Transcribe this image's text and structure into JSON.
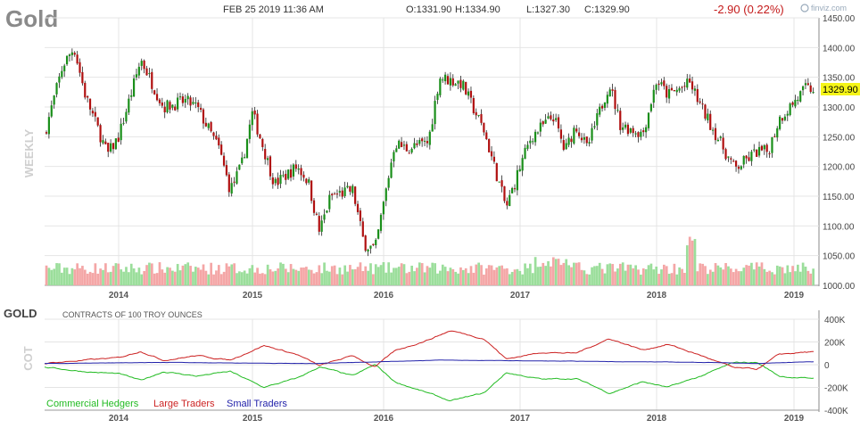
{
  "header": {
    "symbol": "Gold",
    "datetime": "FEB 25 2019 11:36 AM",
    "open": "O:1331.90",
    "high": "H:1334.90",
    "low": "L:1327.30",
    "close": "C:1329.90",
    "change": "-2.90 (0.22%)",
    "brand": "finviz.com"
  },
  "colors": {
    "up": "#1a8f1a",
    "down": "#b01010",
    "wick": "#222222",
    "vol_up": "#9bde9b",
    "vol_down": "#f4a6a6",
    "grid": "#e4e4e4",
    "commercial": "#22bb22",
    "large": "#cc2222",
    "small": "#2222aa",
    "price_tag": "#f5f518",
    "change": "#c41a1a"
  },
  "chart_data": [
    {
      "type": "candlestick",
      "timeframe_label": "WEEKLY",
      "x_tick_labels": [
        "2014",
        "2015",
        "2016",
        "2017",
        "2018",
        "2019"
      ],
      "y_tick_labels": [
        "1450.00",
        "1400.00",
        "1350.00",
        "1300.00",
        "1250.00",
        "1200.00",
        "1150.00",
        "1100.00",
        "1050.00",
        "1000.00"
      ],
      "ylim": [
        1000,
        1450
      ],
      "last_price_label": "1329.90",
      "approx_weekly_closes_keyframes": [
        [
          "2013-06",
          1230
        ],
        [
          "2013-08",
          1370
        ],
        [
          "2013-09",
          1400
        ],
        [
          "2013-10",
          1320
        ],
        [
          "2013-12",
          1220
        ],
        [
          "2014-01",
          1250
        ],
        [
          "2014-03",
          1380
        ],
        [
          "2014-05",
          1300
        ],
        [
          "2014-07",
          1310
        ],
        [
          "2014-08",
          1300
        ],
        [
          "2014-10",
          1230
        ],
        [
          "2014-11",
          1160
        ],
        [
          "2014-12",
          1200
        ],
        [
          "2015-01",
          1290
        ],
        [
          "2015-03",
          1170
        ],
        [
          "2015-05",
          1200
        ],
        [
          "2015-06",
          1175
        ],
        [
          "2015-07",
          1090
        ],
        [
          "2015-08",
          1150
        ],
        [
          "2015-10",
          1160
        ],
        [
          "2015-11",
          1070
        ],
        [
          "2015-12",
          1060
        ],
        [
          "2016-02",
          1240
        ],
        [
          "2016-03",
          1230
        ],
        [
          "2016-05",
          1240
        ],
        [
          "2016-06",
          1350
        ],
        [
          "2016-08",
          1340
        ],
        [
          "2016-10",
          1260
        ],
        [
          "2016-12",
          1130
        ],
        [
          "2017-01",
          1200
        ],
        [
          "2017-02",
          1250
        ],
        [
          "2017-04",
          1285
        ],
        [
          "2017-05",
          1225
        ],
        [
          "2017-06",
          1270
        ],
        [
          "2017-07",
          1230
        ],
        [
          "2017-09",
          1340
        ],
        [
          "2017-10",
          1270
        ],
        [
          "2017-12",
          1255
        ],
        [
          "2018-01",
          1345
        ],
        [
          "2018-02",
          1320
        ],
        [
          "2018-04",
          1340
        ],
        [
          "2018-05",
          1300
        ],
        [
          "2018-07",
          1230
        ],
        [
          "2018-08",
          1195
        ],
        [
          "2018-10",
          1225
        ],
        [
          "2018-11",
          1225
        ],
        [
          "2018-12",
          1280
        ],
        [
          "2019-02",
          1330
        ]
      ]
    },
    {
      "type": "line",
      "title": "GOLD",
      "subtitle": "CONTRACTS OF 100 TROY OUNCES",
      "panel_label": "COT",
      "x_tick_labels": [
        "2014",
        "2015",
        "2016",
        "2017",
        "2018",
        "2019"
      ],
      "y_tick_labels": [
        "400K",
        "200K",
        "0",
        "-200K",
        "-400K"
      ],
      "ylim": [
        -400000,
        400000
      ],
      "series": [
        {
          "name": "Commercial Hedgers",
          "approx_keyframes": [
            [
              "2013-06",
              -20000
            ],
            [
              "2013-10",
              -60000
            ],
            [
              "2014-01",
              -80000
            ],
            [
              "2014-03",
              -140000
            ],
            [
              "2014-05",
              -60000
            ],
            [
              "2014-08",
              -100000
            ],
            [
              "2014-11",
              -60000
            ],
            [
              "2015-02",
              -200000
            ],
            [
              "2015-05",
              -120000
            ],
            [
              "2015-07",
              -20000
            ],
            [
              "2015-10",
              -100000
            ],
            [
              "2015-12",
              0
            ],
            [
              "2016-02",
              -150000
            ],
            [
              "2016-05",
              -250000
            ],
            [
              "2016-07",
              -320000
            ],
            [
              "2016-10",
              -250000
            ],
            [
              "2016-12",
              -70000
            ],
            [
              "2017-03",
              -130000
            ],
            [
              "2017-06",
              -120000
            ],
            [
              "2017-09",
              -250000
            ],
            [
              "2017-12",
              -150000
            ],
            [
              "2018-02",
              -200000
            ],
            [
              "2018-05",
              -100000
            ],
            [
              "2018-08",
              20000
            ],
            [
              "2018-10",
              20000
            ],
            [
              "2018-12",
              -100000
            ],
            [
              "2019-02",
              -120000
            ]
          ]
        },
        {
          "name": "Large Traders",
          "approx_keyframes": [
            [
              "2013-06",
              10000
            ],
            [
              "2013-10",
              40000
            ],
            [
              "2014-01",
              60000
            ],
            [
              "2014-03",
              120000
            ],
            [
              "2014-05",
              40000
            ],
            [
              "2014-08",
              80000
            ],
            [
              "2014-11",
              40000
            ],
            [
              "2015-02",
              170000
            ],
            [
              "2015-05",
              90000
            ],
            [
              "2015-07",
              -10000
            ],
            [
              "2015-10",
              80000
            ],
            [
              "2015-12",
              -20000
            ],
            [
              "2016-02",
              120000
            ],
            [
              "2016-05",
              220000
            ],
            [
              "2016-07",
              300000
            ],
            [
              "2016-10",
              230000
            ],
            [
              "2016-12",
              50000
            ],
            [
              "2017-03",
              110000
            ],
            [
              "2017-06",
              100000
            ],
            [
              "2017-09",
              230000
            ],
            [
              "2017-12",
              130000
            ],
            [
              "2018-02",
              180000
            ],
            [
              "2018-05",
              80000
            ],
            [
              "2018-08",
              -30000
            ],
            [
              "2018-10",
              -40000
            ],
            [
              "2018-12",
              90000
            ],
            [
              "2019-02",
              110000
            ]
          ]
        },
        {
          "name": "Small Traders",
          "approx_keyframes": [
            [
              "2013-06",
              10000
            ],
            [
              "2014-06",
              20000
            ],
            [
              "2015-06",
              10000
            ],
            [
              "2016-06",
              40000
            ],
            [
              "2017-06",
              30000
            ],
            [
              "2018-06",
              20000
            ],
            [
              "2018-10",
              10000
            ],
            [
              "2019-02",
              25000
            ]
          ]
        }
      ]
    }
  ]
}
